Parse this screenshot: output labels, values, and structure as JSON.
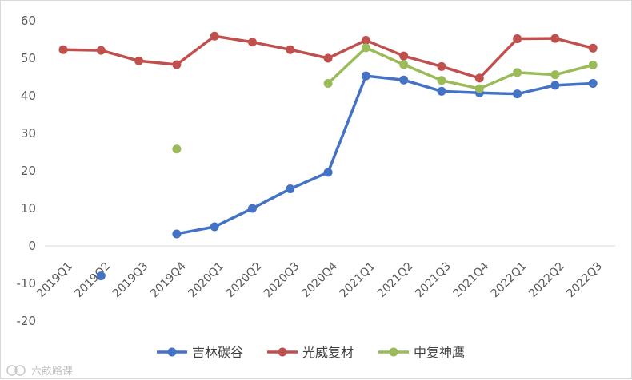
{
  "chart_data": {
    "type": "line",
    "title": "",
    "xlabel": "",
    "ylabel": "",
    "ylim": [
      -20,
      60
    ],
    "yticks": [
      -20,
      -10,
      0,
      10,
      20,
      30,
      40,
      50,
      60
    ],
    "grid": false,
    "legend_position": "bottom",
    "categories": [
      "2019Q1",
      "2019Q2",
      "2019Q3",
      "2019Q4",
      "2020Q1",
      "2020Q2",
      "2020Q3",
      "2020Q4",
      "2021Q1",
      "2021Q2",
      "2021Q3",
      "2021Q4",
      "2022Q1",
      "2022Q2",
      "2022Q3"
    ],
    "series": [
      {
        "name": "吉林碳谷",
        "color": "#4472c4",
        "values": [
          null,
          -8.0,
          null,
          3.2,
          5.1,
          10.0,
          15.2,
          19.6,
          45.3,
          44.2,
          41.2,
          40.8,
          40.5,
          42.8,
          43.3
        ]
      },
      {
        "name": "光威复材",
        "color": "#c0504d",
        "values": [
          52.3,
          52.1,
          49.3,
          48.3,
          55.9,
          54.3,
          52.3,
          50.0,
          54.8,
          50.6,
          47.8,
          44.7,
          55.2,
          55.3,
          52.7
        ]
      },
      {
        "name": "中复神鹰",
        "color": "#9bbb59",
        "values": [
          null,
          null,
          null,
          25.8,
          null,
          null,
          null,
          43.3,
          52.8,
          48.3,
          44.1,
          41.9,
          46.2,
          45.6,
          48.2
        ]
      }
    ]
  },
  "watermark": {
    "icon": "eye-logo-icon",
    "text": "六畝路课"
  }
}
